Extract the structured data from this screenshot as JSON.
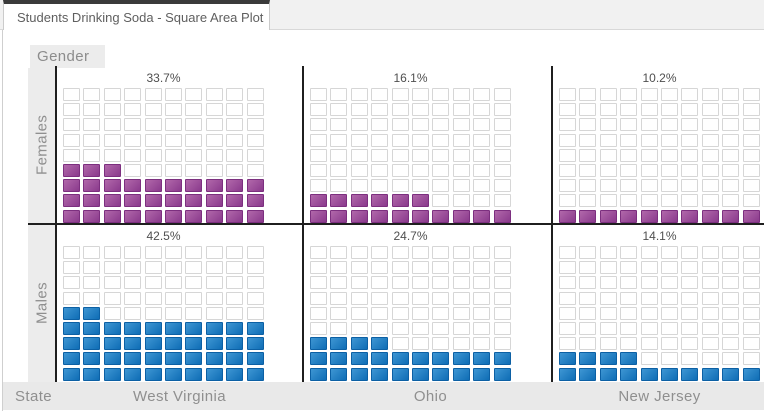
{
  "window": {
    "tab_title": "Students Drinking Soda - Square Area Plot"
  },
  "labels": {
    "gender": "Gender",
    "state": "State",
    "females": "Females",
    "males": "Males"
  },
  "chart_data": {
    "type": "waffle",
    "title": "Students Drinking Soda - Square Area Plot",
    "facet_row_label": "Gender",
    "facet_col_label": "State",
    "row_categories": [
      "Females",
      "Males"
    ],
    "col_categories": [
      "West Virginia",
      "Ohio",
      "New Jersey"
    ],
    "grid": {
      "columns": 10,
      "rows": 9
    },
    "fill_order": "bottom-up, left-to-right",
    "legend": "none",
    "series": [
      {
        "gender": "Females",
        "state": "West Virginia",
        "pct_label": "33.7%",
        "value_pct": 33.7,
        "filled_squares": 33
      },
      {
        "gender": "Females",
        "state": "Ohio",
        "pct_label": "16.1%",
        "value_pct": 16.1,
        "filled_squares": 16
      },
      {
        "gender": "Females",
        "state": "New Jersey",
        "pct_label": "10.2%",
        "value_pct": 10.2,
        "filled_squares": 10
      },
      {
        "gender": "Males",
        "state": "West Virginia",
        "pct_label": "42.5%",
        "value_pct": 42.5,
        "filled_squares": 42
      },
      {
        "gender": "Males",
        "state": "Ohio",
        "pct_label": "24.7%",
        "value_pct": 24.7,
        "filled_squares": 24
      },
      {
        "gender": "Males",
        "state": "New Jersey",
        "pct_label": "14.1%",
        "value_pct": 14.1,
        "filled_squares": 14
      }
    ],
    "colors": {
      "females_fill_light": "#b168aa",
      "females_fill_dark": "#8a3a8c",
      "females_fill_border": "#7c2f7f",
      "males_fill_light": "#3e96d3",
      "males_fill_dark": "#0f6db5",
      "males_fill_border": "#0c60a4",
      "empty_border": "#d6d6d6"
    }
  }
}
